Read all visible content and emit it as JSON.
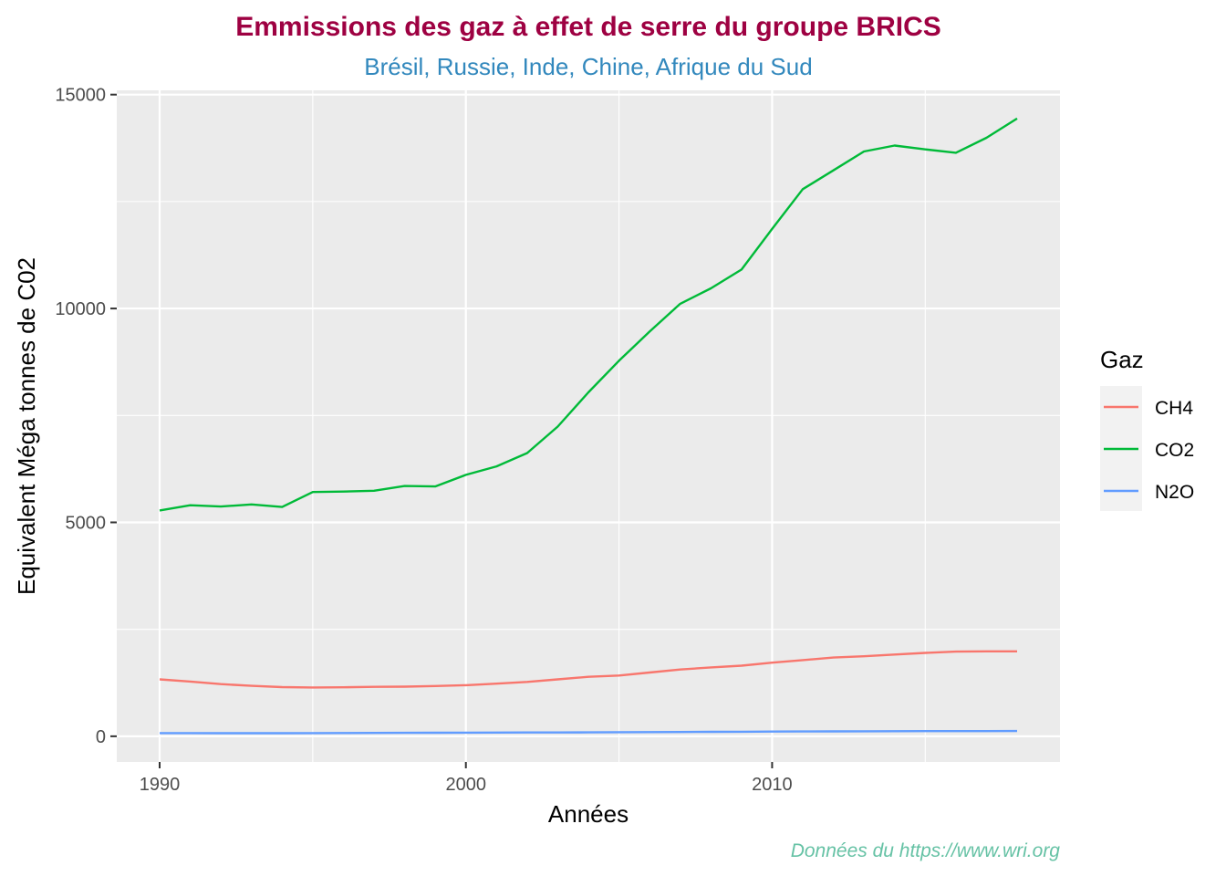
{
  "chart_data": {
    "type": "line",
    "title": "Emmissions des gaz à effet de serre du groupe BRICS",
    "subtitle": "Brésil, Russie, Inde, Chine, Afrique du Sud",
    "xlabel": "Années",
    "ylabel": "Equivalent Méga tonnes de C02",
    "caption": "Données du https://www.wri.org",
    "xlim": [
      1988.6,
      2019.4
    ],
    "ylim": [
      -600,
      15100
    ],
    "x_ticks": [
      1990,
      2000,
      2010
    ],
    "x_minor": [
      1995,
      2005,
      2015
    ],
    "y_ticks": [
      0,
      5000,
      10000,
      15000
    ],
    "y_minor": [
      2500,
      7500,
      12500
    ],
    "grid": true,
    "legend": {
      "title": "Gaz",
      "position": "right"
    },
    "x": [
      1990,
      1991,
      1992,
      1993,
      1994,
      1995,
      1996,
      1997,
      1998,
      1999,
      2000,
      2001,
      2002,
      2003,
      2004,
      2005,
      2006,
      2007,
      2008,
      2009,
      2010,
      2011,
      2012,
      2013,
      2014,
      2015,
      2016,
      2017,
      2018
    ],
    "series": [
      {
        "name": "CH4",
        "color": "#f8766d",
        "values": [
          1330,
          1280,
          1220,
          1180,
          1150,
          1140,
          1145,
          1155,
          1160,
          1175,
          1195,
          1230,
          1270,
          1330,
          1390,
          1420,
          1490,
          1560,
          1610,
          1650,
          1720,
          1780,
          1840,
          1870,
          1910,
          1950,
          1980,
          1985,
          1985
        ]
      },
      {
        "name": "CO2",
        "color": "#00ba38",
        "values": [
          5280,
          5400,
          5370,
          5420,
          5360,
          5710,
          5720,
          5740,
          5850,
          5840,
          6110,
          6310,
          6620,
          7240,
          8040,
          8780,
          9460,
          10110,
          10470,
          10910,
          11860,
          12790,
          13230,
          13670,
          13810,
          13720,
          13640,
          13990,
          14440
        ]
      },
      {
        "name": "N2O",
        "color": "#619cff",
        "values": [
          75,
          75,
          72,
          72,
          72,
          74,
          76,
          78,
          80,
          82,
          85,
          87,
          88,
          90,
          92,
          95,
          97,
          100,
          103,
          106,
          110,
          112,
          114,
          116,
          118,
          120,
          121,
          122,
          124
        ]
      }
    ]
  },
  "colors": {
    "title": "#9e0142",
    "subtitle": "#3288bd",
    "caption": "#66c2a5",
    "panel": "#ebebeb",
    "grid": "#ffffff"
  }
}
